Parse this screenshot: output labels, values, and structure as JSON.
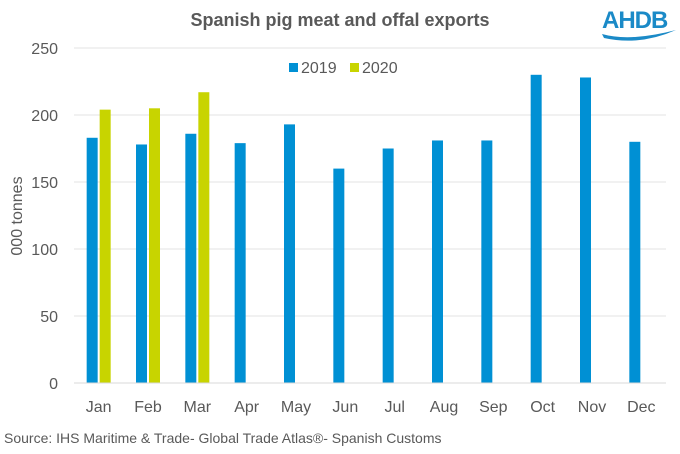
{
  "logo": {
    "text": "AHDB",
    "color": "#1b8ac7"
  },
  "source": "Source: IHS Maritime & Trade- Global Trade Atlas®- Spanish Customs",
  "chart_data": {
    "type": "bar",
    "title": "Spanish pig meat and offal exports",
    "xlabel": "",
    "ylabel": "000 tonnes",
    "ylim": [
      0,
      250
    ],
    "yticks": [
      0,
      50,
      100,
      150,
      200,
      250
    ],
    "grid": true,
    "legend_position": "top-center",
    "categories": [
      "Jan",
      "Feb",
      "Mar",
      "Apr",
      "May",
      "Jun",
      "Jul",
      "Aug",
      "Sep",
      "Oct",
      "Nov",
      "Dec"
    ],
    "series": [
      {
        "name": "2019",
        "color": "#0090d4",
        "values": [
          183,
          178,
          186,
          179,
          193,
          160,
          175,
          181,
          181,
          230,
          228,
          180
        ]
      },
      {
        "name": "2020",
        "color": "#c8d400",
        "values": [
          204,
          205,
          217,
          null,
          null,
          null,
          null,
          null,
          null,
          null,
          null,
          null
        ]
      }
    ]
  }
}
